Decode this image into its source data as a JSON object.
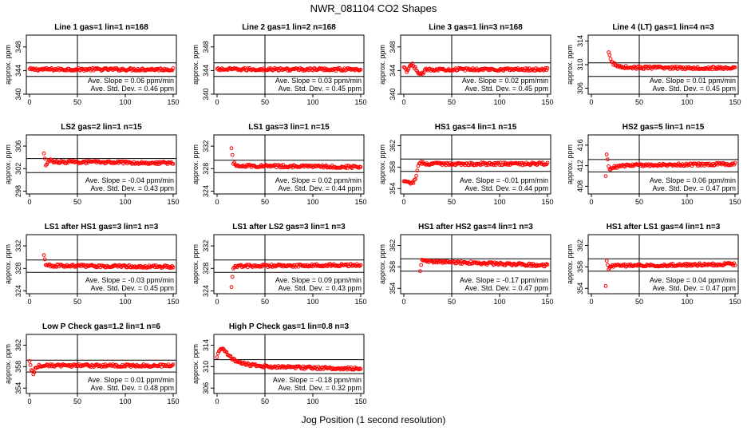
{
  "figure": {
    "title": "NWR_081104  CO2 Shapes",
    "x_axis_label": "Jog Position (1 second resolution)",
    "ylabel": "approx. ppm",
    "slope_label": "Ave. Slope =",
    "slope_unit": "ppm/min",
    "sd_label": "Ave. Std. Dev. =",
    "sd_unit": "ppm",
    "point_color": "#ff0000"
  },
  "chart_data": [
    {
      "type": "scatter",
      "title": "Line 1 gas=1 lin=1 n=168",
      "xlim": [
        0,
        150
      ],
      "ylim": [
        340,
        350
      ],
      "yticks": [
        "340",
        "344",
        "348"
      ],
      "xticks": [
        "0",
        "50",
        "100",
        "150"
      ],
      "hlines": [
        345.3,
        343.0
      ],
      "vline": 50,
      "start": 0,
      "points": [
        [
          0,
          344.2
        ],
        [
          150,
          344.2
        ]
      ],
      "slope": "0.06",
      "sd": "0.46"
    },
    {
      "type": "scatter",
      "title": "Line 2 gas=1 lin=2 n=168",
      "xlim": [
        0,
        150
      ],
      "ylim": [
        340,
        350
      ],
      "yticks": [
        "340",
        "344",
        "348"
      ],
      "xticks": [
        "0",
        "50",
        "100",
        "150"
      ],
      "hlines": [
        345.3,
        343.0
      ],
      "vline": 50,
      "start": 0,
      "points": [
        [
          0,
          344.2
        ],
        [
          150,
          344.2
        ]
      ],
      "slope": "0.03",
      "sd": "0.45"
    },
    {
      "type": "scatter",
      "title": "Line 3 gas=1 lin=3 n=168",
      "xlim": [
        0,
        150
      ],
      "ylim": [
        340,
        350
      ],
      "yticks": [
        "340",
        "344",
        "348"
      ],
      "xticks": [
        "0",
        "50",
        "100",
        "150"
      ],
      "hlines": [
        345.3,
        343.0
      ],
      "vline": 50,
      "start": 0,
      "points": [
        [
          0,
          344.5
        ],
        [
          3,
          343.8
        ],
        [
          6,
          344.6
        ],
        [
          9,
          345.0
        ],
        [
          12,
          344.4
        ],
        [
          15,
          343.6
        ],
        [
          18,
          343.2
        ],
        [
          21,
          343.9
        ],
        [
          24,
          344.2
        ],
        [
          150,
          344.2
        ]
      ],
      "slope": "0.02",
      "sd": "0.45"
    },
    {
      "type": "scatter",
      "title": "Line 4 (LT) gas=1 lin=4 n=3",
      "xlim": [
        0,
        150
      ],
      "ylim": [
        305,
        315
      ],
      "yticks": [
        "306",
        "310",
        "314"
      ],
      "xticks": [
        "0",
        "50",
        "100",
        "150"
      ],
      "hlines": [
        310.3,
        308.0
      ],
      "vline": 50,
      "start": 18,
      "points": [
        [
          18,
          312.0
        ],
        [
          20,
          310.9
        ],
        [
          22,
          310.3
        ],
        [
          26,
          309.8
        ],
        [
          40,
          309.5
        ],
        [
          150,
          309.4
        ]
      ],
      "slope": "0.01",
      "sd": "0.45"
    },
    {
      "type": "scatter",
      "title": "LS2 gas=2 lin=1 n=15",
      "xlim": [
        0,
        150
      ],
      "ylim": [
        297.5,
        308
      ],
      "yticks": [
        "298",
        "302",
        "306"
      ],
      "xticks": [
        "0",
        "50",
        "100",
        "150"
      ],
      "hlines": [
        303.8,
        301.3
      ],
      "vline": 50,
      "start": 15,
      "points": [
        [
          15,
          304.6
        ],
        [
          17,
          302.6
        ],
        [
          19,
          303.3
        ],
        [
          21,
          303.5
        ],
        [
          25,
          303.2
        ],
        [
          150,
          303.0
        ]
      ],
      "slope": "-0.04",
      "sd": "0.43"
    },
    {
      "type": "scatter",
      "title": "LS1 gas=3 lin=1 n=15",
      "xlim": [
        0,
        150
      ],
      "ylim": [
        323.5,
        334
      ],
      "yticks": [
        "324",
        "328",
        "332"
      ],
      "xticks": [
        "0",
        "50",
        "100",
        "150"
      ],
      "hlines": [
        329.5,
        327.3
      ],
      "vline": 50,
      "start": 15,
      "points": [
        [
          15,
          331.5
        ],
        [
          17,
          329.0
        ],
        [
          20,
          328.6
        ],
        [
          30,
          328.5
        ],
        [
          150,
          328.3
        ]
      ],
      "slope": "0.02",
      "sd": "0.44"
    },
    {
      "type": "scatter",
      "title": "HS1 gas=4 lin=1 n=15",
      "xlim": [
        0,
        150
      ],
      "ylim": [
        353,
        364
      ],
      "yticks": [
        "354",
        "358",
        "362"
      ],
      "xticks": [
        "0",
        "50",
        "100",
        "150"
      ],
      "hlines": [
        359.5,
        357.2
      ],
      "vline": 50,
      "start": 0,
      "points": [
        [
          0,
          355.2
        ],
        [
          6,
          355.1
        ],
        [
          10,
          355.2
        ],
        [
          12,
          355.6
        ],
        [
          13,
          356.4
        ],
        [
          14,
          357.2
        ],
        [
          15,
          358.0
        ],
        [
          16,
          358.6
        ],
        [
          18,
          358.8
        ],
        [
          25,
          358.6
        ],
        [
          150,
          358.6
        ]
      ],
      "slope": "-0.01",
      "sd": "0.44"
    },
    {
      "type": "scatter",
      "title": "HS2 gas=5 lin=1 n=15",
      "xlim": [
        0,
        150
      ],
      "ylim": [
        406.5,
        418
      ],
      "yticks": [
        "408",
        "412",
        "416"
      ],
      "xticks": [
        "0",
        "50",
        "100",
        "150"
      ],
      "hlines": [
        413.2,
        410.8
      ],
      "vline": 50,
      "start": 15,
      "points": [
        [
          15,
          409.8
        ],
        [
          16,
          414.0
        ],
        [
          17,
          413.2
        ],
        [
          18,
          411.8
        ],
        [
          20,
          411.3
        ],
        [
          25,
          411.8
        ],
        [
          40,
          412.1
        ],
        [
          150,
          412.3
        ]
      ],
      "slope": "0.06",
      "sd": "0.47"
    },
    {
      "type": "scatter",
      "title": "LS1 after HS1 gas=3 lin=1 n=3",
      "xlim": [
        0,
        150
      ],
      "ylim": [
        323.5,
        334
      ],
      "yticks": [
        "324",
        "328",
        "332"
      ],
      "xticks": [
        "0",
        "50",
        "100",
        "150"
      ],
      "hlines": [
        329.5,
        327.3
      ],
      "vline": 50,
      "start": 15,
      "points": [
        [
          15,
          330.2
        ],
        [
          17,
          328.7
        ],
        [
          20,
          328.5
        ],
        [
          150,
          328.3
        ]
      ],
      "slope": "-0.03",
      "sd": "0.45"
    },
    {
      "type": "scatter",
      "title": "LS1 after LS2 gas=3 lin=1 n=3",
      "xlim": [
        0,
        150
      ],
      "ylim": [
        323.5,
        334
      ],
      "yticks": [
        "324",
        "328",
        "332"
      ],
      "xticks": [
        "0",
        "50",
        "100",
        "150"
      ],
      "hlines": [
        329.5,
        327.3
      ],
      "vline": 50,
      "start": 15,
      "points": [
        [
          15,
          324.5
        ],
        [
          17,
          328.2
        ],
        [
          20,
          328.4
        ],
        [
          150,
          328.6
        ]
      ],
      "slope": "0.09",
      "sd": "0.43"
    },
    {
      "type": "scatter",
      "title": "HS1 after HS2 gas=4 lin=1 n=3",
      "xlim": [
        0,
        150
      ],
      "ylim": [
        353,
        364
      ],
      "yticks": [
        "354",
        "358",
        "362"
      ],
      "xticks": [
        "0",
        "50",
        "100",
        "150"
      ],
      "hlines": [
        359.5,
        357.2
      ],
      "vline": 50,
      "start": 17,
      "points": [
        [
          17,
          357.0
        ],
        [
          18,
          358.2
        ],
        [
          19,
          359.2
        ],
        [
          21,
          359.5
        ],
        [
          25,
          359.0
        ],
        [
          150,
          358.3
        ]
      ],
      "slope": "-0.17",
      "sd": "0.47"
    },
    {
      "type": "scatter",
      "title": "HS1 after LS1 gas=4 lin=1 n=3",
      "xlim": [
        0,
        150
      ],
      "ylim": [
        353,
        364
      ],
      "yticks": [
        "354",
        "358",
        "362"
      ],
      "xticks": [
        "0",
        "50",
        "100",
        "150"
      ],
      "hlines": [
        359.5,
        357.2
      ],
      "vline": 50,
      "start": 15,
      "points": [
        [
          15,
          354.2
        ],
        [
          16,
          359.0
        ],
        [
          18,
          357.8
        ],
        [
          22,
          358.2
        ],
        [
          150,
          358.5
        ]
      ],
      "slope": "0.04",
      "sd": "0.47"
    },
    {
      "type": "scatter",
      "title": "Low P Check gas=1.2 lin=1 n=6",
      "xlim": [
        0,
        150
      ],
      "ylim": [
        353,
        364
      ],
      "yticks": [
        "354",
        "358",
        "362"
      ],
      "xticks": [
        "0",
        "50",
        "100",
        "150"
      ],
      "hlines": [
        359.2,
        357.0
      ],
      "vline": 50,
      "start": 0,
      "points": [
        [
          0,
          358.8
        ],
        [
          2,
          357.5
        ],
        [
          4,
          356.5
        ],
        [
          6,
          357.7
        ],
        [
          10,
          358.2
        ],
        [
          150,
          358.2
        ]
      ],
      "slope": "0.01",
      "sd": "0.48"
    },
    {
      "type": "scatter",
      "title": "High P Check gas=1 lin=0.8 n=3",
      "xlim": [
        0,
        150
      ],
      "ylim": [
        305,
        316
      ],
      "yticks": [
        "306",
        "310",
        "314"
      ],
      "xticks": [
        "0",
        "50",
        "100",
        "150"
      ],
      "hlines": [
        311.3,
        308.7
      ],
      "vline": 50,
      "start": 0,
      "points": [
        [
          0,
          312.0
        ],
        [
          3,
          313.0
        ],
        [
          6,
          313.2
        ],
        [
          10,
          312.6
        ],
        [
          15,
          311.6
        ],
        [
          22,
          310.8
        ],
        [
          35,
          310.3
        ],
        [
          60,
          309.9
        ],
        [
          150,
          309.6
        ]
      ],
      "slope": "-0.18",
      "sd": "0.32"
    }
  ]
}
